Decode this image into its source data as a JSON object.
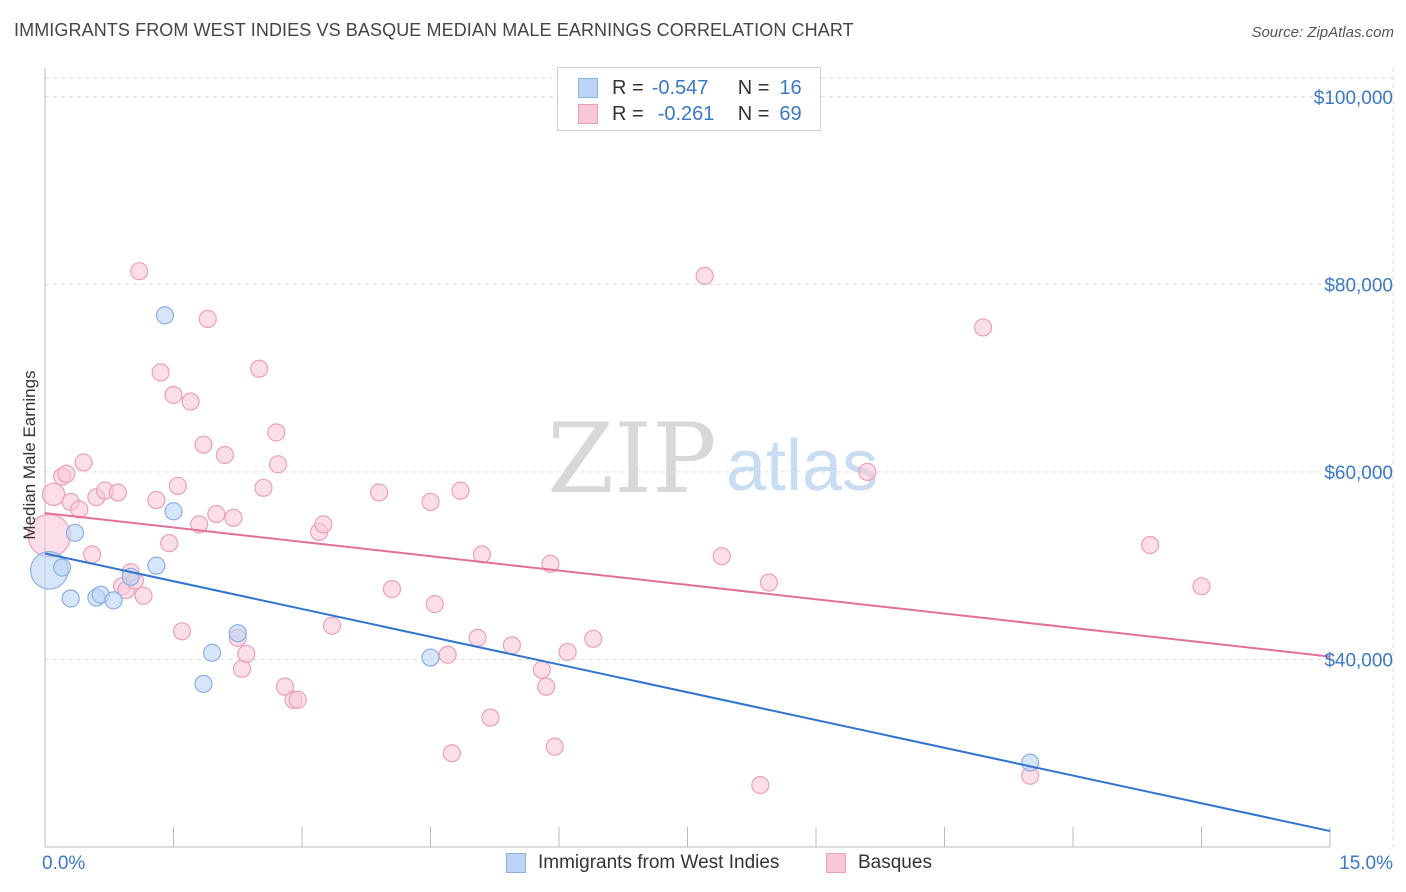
{
  "title": "IMMIGRANTS FROM WEST INDIES VS BASQUE MEDIAN MALE EARNINGS CORRELATION CHART",
  "source": "Source: ZipAtlas.com",
  "watermark": {
    "zip": "ZIP",
    "atlas": "atlas"
  },
  "legend": {
    "r_label": "R =",
    "n_label": "N =",
    "blue": {
      "r": "-0.547",
      "n": "16"
    },
    "pink": {
      "r": "-0.261",
      "n": "69"
    }
  },
  "colors": {
    "blue_fill": "#bcd4f5",
    "blue_stroke": "#8ab0e2",
    "blue_line": "#2f74d0",
    "pink_fill": "#f8c8d8",
    "pink_stroke": "#eca0b8",
    "pink_line": "#e2709a",
    "axis_text": "#3a78c8",
    "grid": "#dddddd"
  },
  "chart_data": {
    "type": "scatter",
    "title": "IMMIGRANTS FROM WEST INDIES VS BASQUE MEDIAN MALE EARNINGS CORRELATION CHART",
    "xlabel": "",
    "ylabel": "Median Male Earnings",
    "xlim": [
      0,
      15
    ],
    "ylim": [
      20000,
      102000
    ],
    "x_tick_labels": [
      "0.0%",
      "15.0%"
    ],
    "y_ticks": [
      40000,
      60000,
      80000,
      100000
    ],
    "y_tick_labels": [
      "$40,000",
      "$60,000",
      "$80,000",
      "$100,000"
    ],
    "series": [
      {
        "name": "Immigrants from West Indies",
        "color": "blue",
        "points": [
          [
            0.05,
            49500,
            2.2
          ],
          [
            0.2,
            49800,
            1
          ],
          [
            0.3,
            46500,
            1
          ],
          [
            0.35,
            53500,
            1
          ],
          [
            0.6,
            46600,
            1
          ],
          [
            0.65,
            46900,
            1
          ],
          [
            0.8,
            46300,
            1
          ],
          [
            1.0,
            48800,
            1
          ],
          [
            1.3,
            50000,
            1
          ],
          [
            1.4,
            76700,
            1
          ],
          [
            1.5,
            55800,
            1
          ],
          [
            1.85,
            37400,
            1
          ],
          [
            1.95,
            40700,
            1
          ],
          [
            2.25,
            42800,
            1
          ],
          [
            4.5,
            40200,
            1
          ],
          [
            11.5,
            29000,
            1
          ]
        ],
        "trend": [
          [
            0,
            51300
          ],
          [
            15,
            21700
          ]
        ]
      },
      {
        "name": "Basques",
        "color": "pink",
        "points": [
          [
            0.05,
            53200,
            2.5
          ],
          [
            0.1,
            57600,
            1.3
          ],
          [
            0.2,
            59500,
            1
          ],
          [
            0.25,
            59800,
            1
          ],
          [
            0.3,
            56800,
            1
          ],
          [
            0.4,
            56000,
            1
          ],
          [
            0.45,
            61000,
            1
          ],
          [
            0.55,
            51200,
            1
          ],
          [
            0.6,
            57300,
            1
          ],
          [
            0.7,
            58000,
            1
          ],
          [
            0.85,
            57800,
            1
          ],
          [
            0.9,
            47800,
            1
          ],
          [
            0.95,
            47400,
            1
          ],
          [
            1.0,
            49300,
            1
          ],
          [
            1.05,
            48400,
            1
          ],
          [
            1.15,
            46800,
            1
          ],
          [
            1.1,
            81400,
            1
          ],
          [
            1.3,
            57000,
            1
          ],
          [
            1.35,
            70600,
            1
          ],
          [
            1.45,
            52400,
            1
          ],
          [
            1.5,
            68200,
            1
          ],
          [
            1.55,
            58500,
            1
          ],
          [
            1.6,
            43000,
            1
          ],
          [
            1.7,
            67500,
            1
          ],
          [
            1.8,
            54400,
            1
          ],
          [
            1.85,
            62900,
            1
          ],
          [
            1.9,
            76300,
            1
          ],
          [
            2.0,
            55500,
            1
          ],
          [
            2.1,
            61800,
            1
          ],
          [
            2.2,
            55100,
            1
          ],
          [
            2.25,
            42300,
            1
          ],
          [
            2.3,
            39000,
            1
          ],
          [
            2.35,
            40600,
            1
          ],
          [
            2.5,
            71000,
            1
          ],
          [
            2.55,
            58300,
            1
          ],
          [
            2.7,
            64200,
            1
          ],
          [
            2.72,
            60800,
            1
          ],
          [
            2.8,
            37100,
            1
          ],
          [
            2.9,
            35700,
            1
          ],
          [
            2.95,
            35700,
            1
          ],
          [
            3.2,
            53600,
            1
          ],
          [
            3.25,
            54400,
            1
          ],
          [
            3.35,
            43600,
            1
          ],
          [
            3.9,
            57800,
            1
          ],
          [
            4.05,
            47500,
            1
          ],
          [
            4.5,
            56800,
            1
          ],
          [
            4.55,
            45900,
            1
          ],
          [
            4.7,
            40500,
            1
          ],
          [
            4.75,
            30000,
            1
          ],
          [
            4.85,
            58000,
            1
          ],
          [
            5.05,
            42300,
            1
          ],
          [
            5.1,
            51200,
            1
          ],
          [
            5.2,
            33800,
            1
          ],
          [
            5.45,
            41500,
            1
          ],
          [
            5.8,
            38900,
            1
          ],
          [
            5.85,
            37100,
            1
          ],
          [
            5.9,
            50200,
            1
          ],
          [
            5.95,
            30700,
            1
          ],
          [
            6.1,
            40800,
            1
          ],
          [
            6.4,
            42200,
            1
          ],
          [
            7.7,
            80900,
            1
          ],
          [
            7.9,
            51000,
            1
          ],
          [
            8.35,
            26600,
            1
          ],
          [
            8.45,
            48200,
            1
          ],
          [
            9.6,
            60000,
            1
          ],
          [
            10.95,
            75400,
            1
          ],
          [
            11.5,
            27600,
            1
          ],
          [
            12.9,
            52200,
            1
          ],
          [
            13.5,
            47800,
            1
          ]
        ],
        "trend": [
          [
            0,
            55600
          ],
          [
            15,
            40300
          ]
        ]
      }
    ]
  }
}
